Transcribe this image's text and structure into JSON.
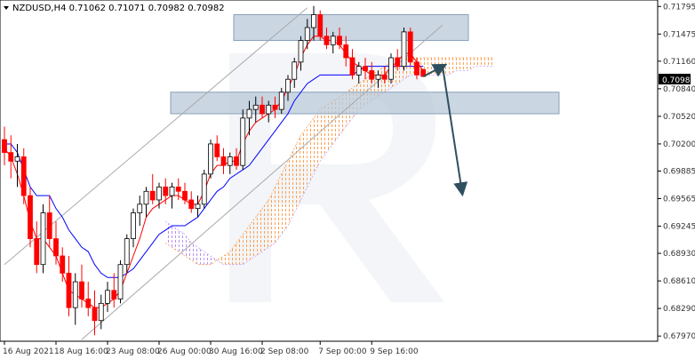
{
  "chart_data": {
    "type": "candlestick",
    "symbol_line": "NZDUSD,H4  0.71062 0.71071 0.70982 0.70982",
    "current_price": "0.70982",
    "y_ticks": [
      "0.71795",
      "0.71475",
      "0.71160",
      "0.70840",
      "0.70520",
      "0.70200",
      "0.69885",
      "0.69565",
      "0.69245",
      "0.68930",
      "0.68610",
      "0.68290",
      "0.67970"
    ],
    "x_ticks": [
      "16 Aug 2021",
      "18 Aug 16:00",
      "23 Aug 08:00",
      "26 Aug 00:00",
      "30 Aug 16:00",
      "2 Sep 08:00",
      "7 Sep 00:00",
      "9 Sep 16:00"
    ],
    "ylim": [
      0.6791,
      0.7187
    ],
    "candles": [
      [
        0.7025,
        0.704,
        0.6995,
        0.701
      ],
      [
        0.701,
        0.703,
        0.698,
        0.7
      ],
      [
        0.7,
        0.702,
        0.697,
        0.7005
      ],
      [
        0.7005,
        0.7015,
        0.695,
        0.696
      ],
      [
        0.696,
        0.697,
        0.69,
        0.691
      ],
      [
        0.691,
        0.693,
        0.687,
        0.688
      ],
      [
        0.688,
        0.695,
        0.687,
        0.694
      ],
      [
        0.694,
        0.696,
        0.69,
        0.691
      ],
      [
        0.691,
        0.693,
        0.688,
        0.689
      ],
      [
        0.689,
        0.69,
        0.686,
        0.687
      ],
      [
        0.687,
        0.689,
        0.682,
        0.683
      ],
      [
        0.683,
        0.687,
        0.681,
        0.686
      ],
      [
        0.686,
        0.688,
        0.683,
        0.684
      ],
      [
        0.684,
        0.686,
        0.682,
        0.683
      ],
      [
        0.683,
        0.685,
        0.6798,
        0.6815
      ],
      [
        0.6815,
        0.6845,
        0.6805,
        0.6835
      ],
      [
        0.6835,
        0.686,
        0.6825,
        0.685
      ],
      [
        0.685,
        0.687,
        0.683,
        0.684
      ],
      [
        0.684,
        0.6885,
        0.6835,
        0.688
      ],
      [
        0.688,
        0.6915,
        0.687,
        0.691
      ],
      [
        0.691,
        0.6945,
        0.69,
        0.694
      ],
      [
        0.694,
        0.696,
        0.6925,
        0.695
      ],
      [
        0.695,
        0.697,
        0.6935,
        0.6965
      ],
      [
        0.6965,
        0.6985,
        0.695,
        0.6955
      ],
      [
        0.6955,
        0.6975,
        0.6945,
        0.697
      ],
      [
        0.697,
        0.698,
        0.695,
        0.696
      ],
      [
        0.696,
        0.6975,
        0.6945,
        0.697
      ],
      [
        0.697,
        0.698,
        0.6955,
        0.6965
      ],
      [
        0.6965,
        0.6975,
        0.695,
        0.6955
      ],
      [
        0.6955,
        0.6965,
        0.694,
        0.6945
      ],
      [
        0.6945,
        0.696,
        0.6935,
        0.695
      ],
      [
        0.695,
        0.699,
        0.6945,
        0.6985
      ],
      [
        0.6985,
        0.7025,
        0.698,
        0.702
      ],
      [
        0.702,
        0.703,
        0.7,
        0.7005
      ],
      [
        0.7005,
        0.7015,
        0.6985,
        0.6995
      ],
      [
        0.6995,
        0.701,
        0.6985,
        0.7005
      ],
      [
        0.7005,
        0.7015,
        0.699,
        0.6995
      ],
      [
        0.6995,
        0.706,
        0.699,
        0.705
      ],
      [
        0.705,
        0.707,
        0.703,
        0.706
      ],
      [
        0.706,
        0.7075,
        0.7045,
        0.7065
      ],
      [
        0.7065,
        0.7075,
        0.705,
        0.7055
      ],
      [
        0.7055,
        0.707,
        0.7045,
        0.7065
      ],
      [
        0.7065,
        0.7075,
        0.705,
        0.706
      ],
      [
        0.706,
        0.7085,
        0.7055,
        0.708
      ],
      [
        0.708,
        0.71,
        0.707,
        0.7095
      ],
      [
        0.7095,
        0.712,
        0.7085,
        0.7115
      ],
      [
        0.7115,
        0.7145,
        0.7105,
        0.714
      ],
      [
        0.714,
        0.7165,
        0.713,
        0.7155
      ],
      [
        0.7155,
        0.718,
        0.714,
        0.717
      ],
      [
        0.717,
        0.7175,
        0.714,
        0.7145
      ],
      [
        0.7145,
        0.7155,
        0.713,
        0.7135
      ],
      [
        0.7135,
        0.715,
        0.7125,
        0.7145
      ],
      [
        0.7145,
        0.7155,
        0.713,
        0.7135
      ],
      [
        0.7135,
        0.7145,
        0.711,
        0.712
      ],
      [
        0.712,
        0.713,
        0.7095,
        0.71
      ],
      [
        0.71,
        0.7115,
        0.709,
        0.711
      ],
      [
        0.711,
        0.712,
        0.7095,
        0.7105
      ],
      [
        0.7105,
        0.7115,
        0.709,
        0.7095
      ],
      [
        0.7095,
        0.7105,
        0.7085,
        0.71
      ],
      [
        0.71,
        0.711,
        0.709,
        0.7095
      ],
      [
        0.7095,
        0.7125,
        0.709,
        0.712
      ],
      [
        0.712,
        0.713,
        0.7105,
        0.711
      ],
      [
        0.711,
        0.7155,
        0.7105,
        0.715
      ],
      [
        0.715,
        0.7155,
        0.711,
        0.7115
      ],
      [
        0.7115,
        0.712,
        0.7095,
        0.71
      ],
      [
        0.71062,
        0.71071,
        0.70982,
        0.70982
      ]
    ],
    "tenkan_sen": [
      0.7015,
      0.7005,
      0.6985,
      0.696,
      0.693,
      0.691,
      0.691,
      0.69,
      0.689,
      0.687,
      0.685,
      0.6845,
      0.684,
      0.6835,
      0.683,
      0.683,
      0.6835,
      0.684,
      0.685,
      0.687,
      0.689,
      0.691,
      0.6935,
      0.6945,
      0.695,
      0.6955,
      0.696,
      0.696,
      0.6955,
      0.695,
      0.695,
      0.6965,
      0.6985,
      0.6995,
      0.6995,
      0.7,
      0.7,
      0.702,
      0.7035,
      0.7045,
      0.705,
      0.7055,
      0.706,
      0.707,
      0.7085,
      0.71,
      0.712,
      0.7135,
      0.7145,
      0.7145,
      0.714,
      0.714,
      0.7135,
      0.7125,
      0.7115,
      0.711,
      0.7105,
      0.71,
      0.71,
      0.71,
      0.711,
      0.7115,
      0.7125,
      0.7125,
      0.7115,
      0.7105
    ],
    "kijun_sen": [
      0.702,
      0.702,
      0.701,
      0.699,
      0.697,
      0.696,
      0.696,
      0.696,
      0.6945,
      0.6935,
      0.692,
      0.691,
      0.69,
      0.6895,
      0.688,
      0.687,
      0.6865,
      0.6865,
      0.6865,
      0.687,
      0.6875,
      0.6885,
      0.6895,
      0.6905,
      0.6915,
      0.692,
      0.6925,
      0.6925,
      0.6925,
      0.693,
      0.6935,
      0.6945,
      0.6955,
      0.6965,
      0.697,
      0.698,
      0.6985,
      0.699,
      0.6995,
      0.7005,
      0.7015,
      0.7025,
      0.7035,
      0.7045,
      0.7055,
      0.707,
      0.708,
      0.709,
      0.7095,
      0.71,
      0.71,
      0.71,
      0.71,
      0.71,
      0.71,
      0.7105,
      0.711,
      0.711,
      0.711,
      0.711,
      0.711,
      0.711,
      0.711,
      0.711,
      0.711,
      0.711
    ],
    "cloud_start_index": 25,
    "span_a": [
      0.6905,
      0.69,
      0.6895,
      0.689,
      0.6885,
      0.688,
      0.688,
      0.688,
      0.6885,
      0.689,
      0.6895,
      0.6905,
      0.6915,
      0.6925,
      0.6935,
      0.6945,
      0.6955,
      0.697,
      0.6985,
      0.7,
      0.7015,
      0.703,
      0.704,
      0.705,
      0.706,
      0.7065,
      0.707,
      0.7075,
      0.708,
      0.7085,
      0.709,
      0.7095,
      0.71,
      0.7105,
      0.711,
      0.7115,
      0.712,
      0.712,
      0.712,
      0.712,
      0.712,
      0.712,
      0.712,
      0.712,
      0.712,
      0.712,
      0.712,
      0.712,
      0.712,
      0.712,
      0.712,
      0.712
    ],
    "span_b": [
      0.693,
      0.6925,
      0.692,
      0.6915,
      0.6905,
      0.69,
      0.6895,
      0.689,
      0.6885,
      0.688,
      0.688,
      0.688,
      0.688,
      0.6885,
      0.689,
      0.6895,
      0.69,
      0.6905,
      0.6915,
      0.6925,
      0.694,
      0.6955,
      0.697,
      0.6985,
      0.7,
      0.701,
      0.702,
      0.703,
      0.704,
      0.705,
      0.706,
      0.7065,
      0.707,
      0.7075,
      0.708,
      0.7085,
      0.709,
      0.7095,
      0.71,
      0.71,
      0.71,
      0.71,
      0.71,
      0.71,
      0.71,
      0.7105,
      0.7105,
      0.7105,
      0.711,
      0.711,
      0.711,
      0.711
    ],
    "channel_upper": [
      [
        0.6893,
        0.71795
      ],
      [
        0,
        49
      ]
    ],
    "resistance_zone": [
      0.714,
      0.717
    ],
    "support_zone": [
      0.7055,
      0.708
    ],
    "forecast_path": [
      [
        65,
        0.70982
      ],
      [
        68,
        0.711
      ],
      [
        71,
        0.6965
      ]
    ],
    "colors": {
      "up_body": "#ffffff",
      "down_body": "#ff0000",
      "candle_outline": "#000000",
      "tenkan": "#ff0000",
      "kijun": "#0000ff",
      "cloud_a": "#ffa050",
      "cloud_b": "#c8a0ff",
      "zone": "#b8c8d8",
      "arrow": "#2f4f5f",
      "channel": "#aaaaaa",
      "price_label_bg": "#000000"
    }
  }
}
